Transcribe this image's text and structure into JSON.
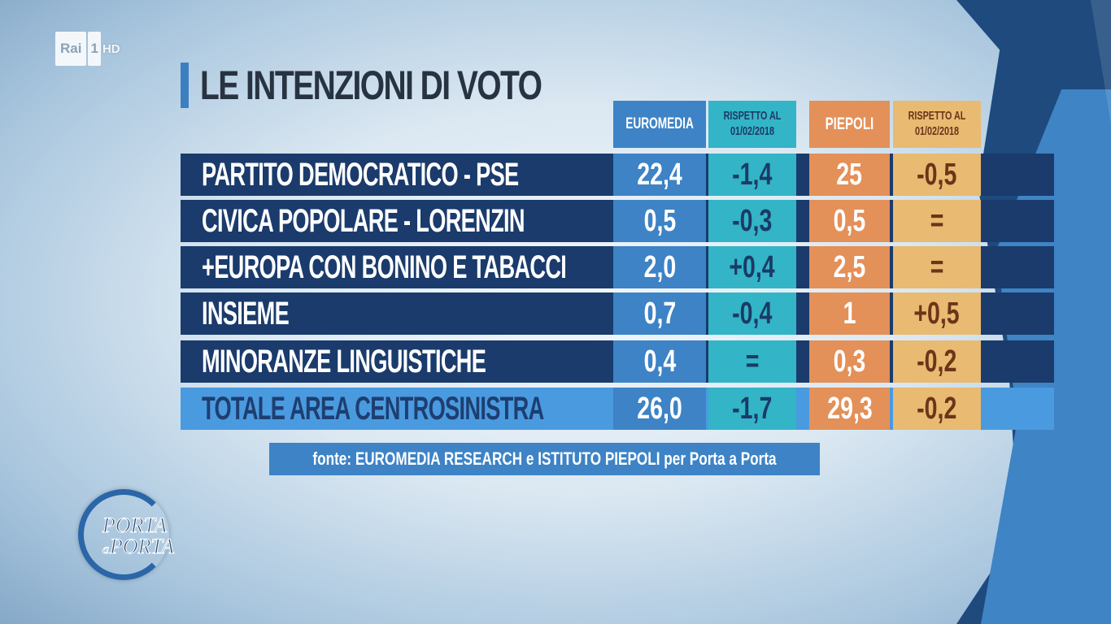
{
  "channel": {
    "brand": "Rai",
    "number": "1",
    "quality": "HD"
  },
  "title": "LE INTENZIONI DI VOTO",
  "columns": {
    "euromedia": "EUROMEDIA",
    "rispetto_euromedia": "RISPETTO AL 01/02/2018",
    "piepoli": "PIEPOLI",
    "rispetto_piepoli": "RISPETTO AL 01/02/2018"
  },
  "rows": [
    {
      "party": "PARTITO DEMOCRATICO - PSE",
      "euromedia": "22,4",
      "euromedia_delta": "-1,4",
      "piepoli": "25",
      "piepoli_delta": "-0,5"
    },
    {
      "party": "CIVICA POPOLARE - LORENZIN",
      "euromedia": "0,5",
      "euromedia_delta": "-0,3",
      "piepoli": "0,5",
      "piepoli_delta": "="
    },
    {
      "party": "+EUROPA CON BONINO E TABACCI",
      "euromedia": "2,0",
      "euromedia_delta": "+0,4",
      "piepoli": "2,5",
      "piepoli_delta": "="
    },
    {
      "party": "INSIEME",
      "euromedia": "0,7",
      "euromedia_delta": "-0,4",
      "piepoli": "1",
      "piepoli_delta": "+0,5"
    },
    {
      "party": "MINORANZE LINGUISTICHE",
      "euromedia": "0,4",
      "euromedia_delta": "=",
      "piepoli": "0,3",
      "piepoli_delta": "-0,2"
    },
    {
      "party": "TOTALE AREA CENTROSINISTRA",
      "euromedia": "26,0",
      "euromedia_delta": "-1,7",
      "piepoli": "29,3",
      "piepoli_delta": "-0,2"
    }
  ],
  "source": "fonte: EUROMEDIA RESEARCH e ISTITUTO PIEPOLI per Porta a Porta",
  "show": {
    "line1": "PORTA",
    "connector": "a",
    "line2": "PORTA"
  },
  "colors": {
    "row_dark": "#1a3b6c",
    "row_total": "#4a9ae0",
    "euromedia": "#3d83c6",
    "euromedia_delta": "#33b4c7",
    "piepoli": "#e39059",
    "piepoli_delta": "#e8ba72"
  }
}
